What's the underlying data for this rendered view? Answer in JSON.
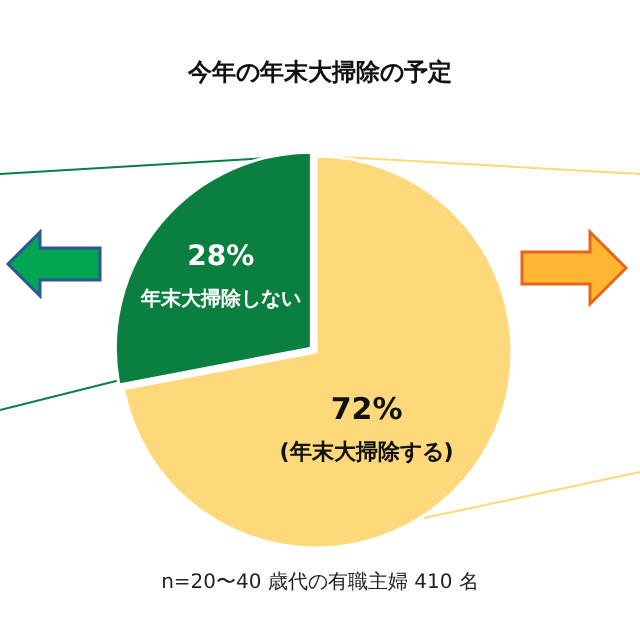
{
  "chart_data": {
    "type": "pie",
    "title": "今年の年末大掃除の予定",
    "categories": [
      "年末大掃除しない",
      "(年末大掃除する)"
    ],
    "values": [
      28,
      72
    ],
    "colors": [
      "#0a7f3f",
      "#fdd97c"
    ],
    "value_labels": [
      "28%",
      "72%"
    ],
    "annotations": [
      "n=20〜40 歳代の有職主婦 410 名"
    ]
  }
}
